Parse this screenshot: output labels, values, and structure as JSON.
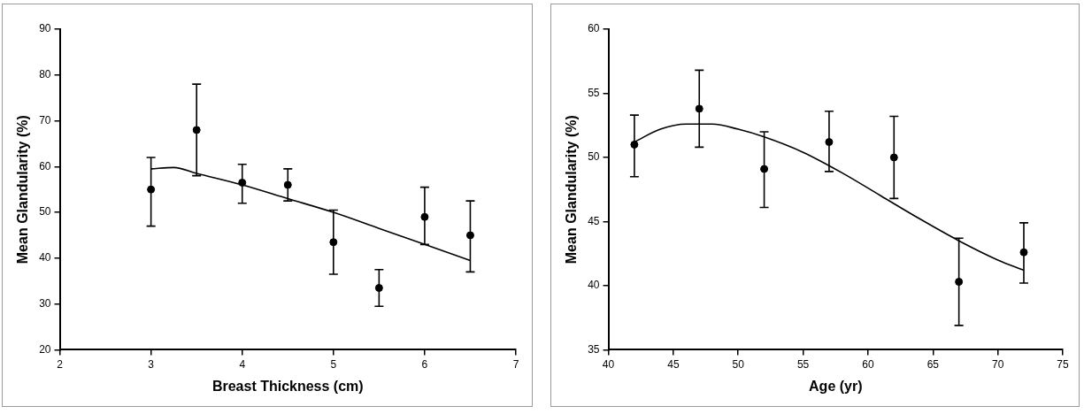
{
  "chart_data": [
    {
      "type": "scatter",
      "x_label": "Breast Thickness (cm)",
      "y_label": "Mean Glandularity (%)",
      "x": [
        3,
        3.5,
        4,
        4.5,
        5,
        5.5,
        6,
        6.5
      ],
      "values": [
        55,
        68,
        56.5,
        56,
        43.5,
        33.5,
        49,
        45
      ],
      "error_low": [
        47,
        58,
        52,
        52.5,
        36.5,
        29.5,
        43,
        37
      ],
      "error_high": [
        62,
        78,
        60.5,
        59.5,
        50.5,
        37.5,
        55.5,
        52.5
      ],
      "curve_x": [
        3,
        3.25,
        3.5,
        4,
        4.5,
        5,
        5.5,
        6,
        6.5
      ],
      "curve_values": [
        59.5,
        59.8,
        58.5,
        56,
        53,
        50,
        46.5,
        43,
        39.5
      ],
      "color": "#000000",
      "marker": "circle",
      "grid": false,
      "xlim": [
        2,
        7
      ],
      "xticks": [
        2,
        3,
        4,
        5,
        6,
        7
      ],
      "ylim": [
        20,
        90
      ],
      "yticks": [
        20,
        30,
        40,
        50,
        60,
        70,
        80,
        90
      ]
    },
    {
      "type": "scatter",
      "x_label": "Age (yr)",
      "y_label": "Mean Glandularity (%)",
      "x": [
        42,
        47,
        52,
        57,
        62,
        67,
        72
      ],
      "values": [
        51,
        53.8,
        49.1,
        51.2,
        50,
        40.3,
        42.6
      ],
      "error_low": [
        48.5,
        50.8,
        46.1,
        48.9,
        46.8,
        36.9,
        40.2
      ],
      "error_high": [
        53.3,
        56.8,
        52,
        53.6,
        53.2,
        43.7,
        44.9
      ],
      "curve_x": [
        42,
        44,
        46,
        48,
        50,
        52,
        55,
        58,
        61,
        64,
        67,
        70,
        72
      ],
      "curve_values": [
        51.2,
        52.2,
        52.6,
        52.6,
        52.2,
        51.6,
        50.4,
        48.8,
        47,
        45.2,
        43.5,
        42,
        41.2
      ],
      "color": "#000000",
      "marker": "circle",
      "grid": false,
      "xlim": [
        40,
        75
      ],
      "xticks": [
        40,
        45,
        50,
        55,
        60,
        65,
        70,
        75
      ],
      "ylim": [
        35,
        60
      ],
      "yticks": [
        35,
        40,
        45,
        50,
        55,
        60
      ]
    }
  ]
}
